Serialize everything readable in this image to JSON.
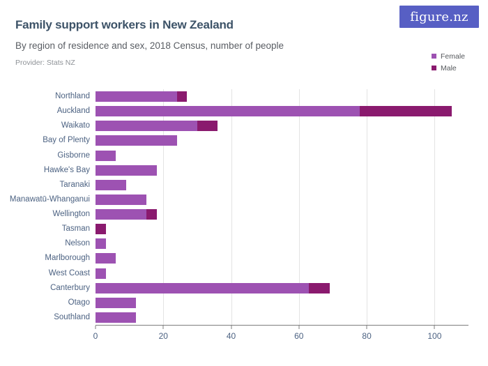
{
  "header": {
    "title": "Family support workers in New Zealand",
    "subtitle": "By region of residence and sex, 2018 Census, number of people",
    "provider": "Provider: Stats NZ",
    "logo_text": "figure.nz"
  },
  "colors": {
    "female": "#9d52b2",
    "male": "#8a1a6e",
    "logo_bg": "#575fc4",
    "title_text": "#3d5368",
    "axis_text": "#4c6282",
    "grid": "#e3e3e3"
  },
  "legend": {
    "items": [
      {
        "label": "Female",
        "color": "#9d52b2"
      },
      {
        "label": "Male",
        "color": "#8a1a6e"
      }
    ]
  },
  "chart_data": {
    "type": "bar",
    "orientation": "horizontal",
    "stacked": true,
    "title": "Family support workers in New Zealand",
    "subtitle": "By region of residence and sex, 2018 Census, number of people",
    "source": "Stats NZ",
    "categories": [
      "Northland",
      "Auckland",
      "Waikato",
      "Bay of Plenty",
      "Gisborne",
      "Hawke's Bay",
      "Taranaki",
      "Manawatū-Whanganui",
      "Wellington",
      "Tasman",
      "Nelson",
      "Marlborough",
      "West Coast",
      "Canterbury",
      "Otago",
      "Southland"
    ],
    "series": [
      {
        "name": "Female",
        "color": "#9d52b2",
        "values": [
          24,
          78,
          30,
          24,
          6,
          18,
          9,
          15,
          15,
          0,
          3,
          6,
          3,
          63,
          12,
          12
        ]
      },
      {
        "name": "Male",
        "color": "#8a1a6e",
        "values": [
          3,
          27,
          6,
          0,
          0,
          0,
          0,
          0,
          3,
          3,
          0,
          0,
          0,
          6,
          0,
          0
        ]
      }
    ],
    "totals": [
      27,
      105,
      36,
      24,
      6,
      18,
      9,
      15,
      18,
      3,
      3,
      6,
      3,
      69,
      12,
      12
    ],
    "xlabel": "",
    "ylabel": "",
    "xlim": [
      0,
      110
    ],
    "xticks": [
      0,
      20,
      40,
      60,
      80,
      100
    ],
    "grid": "vertical",
    "legend_position": "top-right"
  }
}
